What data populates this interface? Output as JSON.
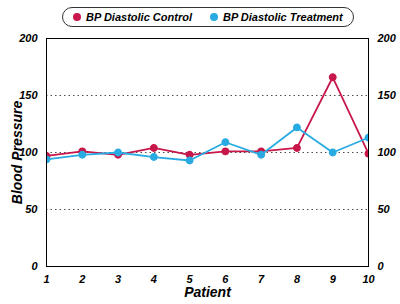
{
  "chart_data": {
    "type": "line",
    "x": [
      1,
      2,
      3,
      4,
      5,
      6,
      7,
      8,
      9,
      10
    ],
    "xlabel": "Patient",
    "ylabel": "Blood Pressure",
    "xlim": [
      1,
      10
    ],
    "xticks": [
      1,
      2,
      3,
      4,
      5,
      6,
      7,
      8,
      9,
      10
    ],
    "ylim": [
      0,
      200
    ],
    "yticks": [
      0,
      50,
      100,
      150,
      200
    ],
    "grid": true,
    "legend": "top",
    "series": [
      {
        "name": "BP Diastolic Control",
        "color": "#c8174a",
        "marker": "circle",
        "values": [
          97,
          101,
          98,
          104,
          98,
          101,
          101,
          104,
          166,
          99
        ]
      },
      {
        "name": "BP Diastolic Treatment",
        "color": "#29abe2",
        "marker": "circle",
        "values": [
          94,
          98,
          100,
          96,
          93,
          109,
          98,
          122,
          100,
          113
        ]
      }
    ]
  }
}
